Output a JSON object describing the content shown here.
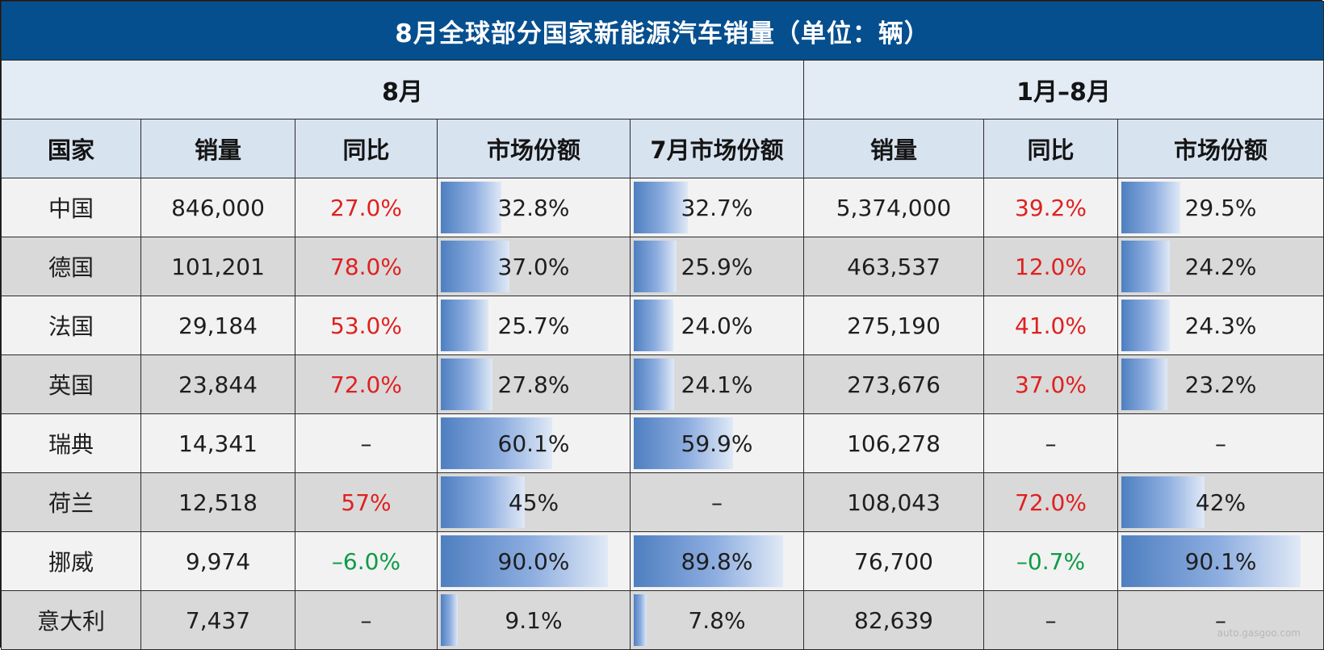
{
  "chart_data": {
    "type": "table",
    "title": "8月全球部分国家新能源汽车销量（单位：辆）",
    "groups": [
      "8月",
      "1月–8月"
    ],
    "columns": [
      "国家",
      "销量",
      "同比",
      "市场份额",
      "7月市场份额",
      "销量",
      "同比",
      "市场份额"
    ],
    "rows": [
      {
        "country": "中国",
        "aug_sales": "846,000",
        "aug_yoy": "27.0%",
        "aug_share": "32.8%",
        "jul_share": "32.7%",
        "ytd_sales": "5,374,000",
        "ytd_yoy": "39.2%",
        "ytd_share": "29.5%"
      },
      {
        "country": "德国",
        "aug_sales": "101,201",
        "aug_yoy": "78.0%",
        "aug_share": "37.0%",
        "jul_share": "25.9%",
        "ytd_sales": "463,537",
        "ytd_yoy": "12.0%",
        "ytd_share": "24.2%"
      },
      {
        "country": "法国",
        "aug_sales": "29,184",
        "aug_yoy": "53.0%",
        "aug_share": "25.7%",
        "jul_share": "24.0%",
        "ytd_sales": "275,190",
        "ytd_yoy": "41.0%",
        "ytd_share": "24.3%"
      },
      {
        "country": "英国",
        "aug_sales": "23,844",
        "aug_yoy": "72.0%",
        "aug_share": "27.8%",
        "jul_share": "24.1%",
        "ytd_sales": "273,676",
        "ytd_yoy": "37.0%",
        "ytd_share": "23.2%"
      },
      {
        "country": "瑞典",
        "aug_sales": "14,341",
        "aug_yoy": "–",
        "aug_share": "60.1%",
        "jul_share": "59.9%",
        "ytd_sales": "106,278",
        "ytd_yoy": "–",
        "ytd_share": "–"
      },
      {
        "country": "荷兰",
        "aug_sales": "12,518",
        "aug_yoy": "57%",
        "aug_share": "45%",
        "jul_share": "–",
        "ytd_sales": "108,043",
        "ytd_yoy": "72.0%",
        "ytd_share": "42%"
      },
      {
        "country": "挪威",
        "aug_sales": "9,974",
        "aug_yoy": "–6.0%",
        "aug_share": "90.0%",
        "jul_share": "89.8%",
        "ytd_sales": "76,700",
        "ytd_yoy": "–0.7%",
        "ytd_share": "90.1%"
      },
      {
        "country": "意大利",
        "aug_sales": "7,437",
        "aug_yoy": "–",
        "aug_share": "9.1%",
        "jul_share": "7.8%",
        "ytd_sales": "82,639",
        "ytd_yoy": "–",
        "ytd_share": "–"
      }
    ],
    "bar_columns": [
      "aug_share",
      "jul_share",
      "ytd_share"
    ],
    "colors": {
      "title_bg": "#064f8e",
      "bar": "#4e7fc0",
      "positive": "#e02020",
      "negative": "#0d9b46"
    }
  },
  "watermark": "auto.gasgoo.com"
}
